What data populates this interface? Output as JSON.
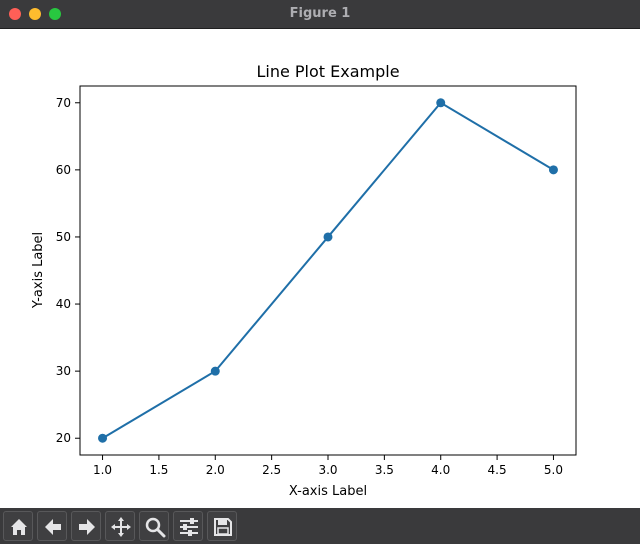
{
  "window": {
    "title": "Figure 1"
  },
  "toolbar": {
    "buttons": [
      {
        "name": "home-icon",
        "label": "Home"
      },
      {
        "name": "back-icon",
        "label": "Back"
      },
      {
        "name": "forward-icon",
        "label": "Forward"
      },
      {
        "name": "pan-icon",
        "label": "Pan"
      },
      {
        "name": "zoom-icon",
        "label": "Zoom"
      },
      {
        "name": "configure-subplots-icon",
        "label": "Configure subplots"
      },
      {
        "name": "save-icon",
        "label": "Save"
      }
    ]
  },
  "colors": {
    "line": "#1f6fa8",
    "titlebar": "#3a3a3c"
  },
  "chart_data": {
    "type": "line",
    "title": "Line Plot Example",
    "xlabel": "X-axis Label",
    "ylabel": "Y-axis Label",
    "x": [
      1.0,
      2.0,
      3.0,
      4.0,
      5.0
    ],
    "series": [
      {
        "values": [
          20,
          30,
          50,
          70,
          60
        ],
        "marker": "circle"
      }
    ],
    "xlim": [
      0.8,
      5.2
    ],
    "ylim": [
      17.5,
      72.5
    ],
    "xticks": [
      "1.0",
      "1.5",
      "2.0",
      "2.5",
      "3.0",
      "3.5",
      "4.0",
      "4.5",
      "5.0"
    ],
    "yticks": [
      "20",
      "30",
      "40",
      "50",
      "60",
      "70"
    ],
    "grid": false
  }
}
